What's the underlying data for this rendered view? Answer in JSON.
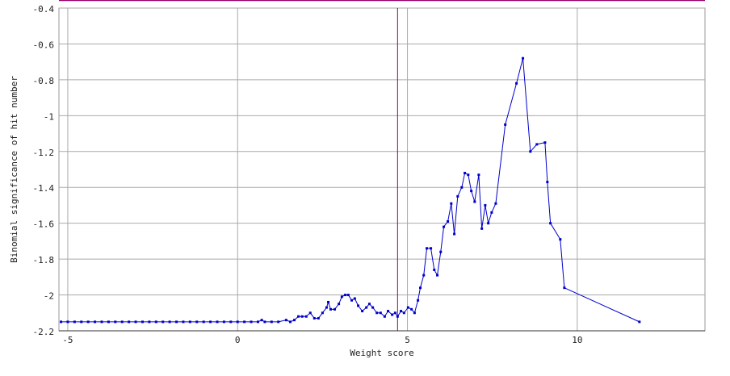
{
  "chart_data": {
    "type": "line",
    "xlabel": "Weight score",
    "ylabel": "Binomial significance of hit number",
    "color": "#0000cc",
    "marker_line_x": 4.71,
    "marker_line_color": "#990066",
    "grid": true,
    "xlim": [
      -5.26,
      13.76
    ],
    "xticks": [
      -5,
      0,
      5,
      10
    ],
    "ylim": [
      -2.2,
      -0.4
    ],
    "yticks": [
      -0.4,
      -0.6,
      -0.8,
      -1,
      -1.2,
      -1.4,
      -1.6,
      -1.8,
      -2,
      -2.2
    ],
    "x": [
      -5.2,
      -5,
      -4.8,
      -4.6,
      -4.4,
      -4.2,
      -4,
      -3.8,
      -3.6,
      -3.4,
      -3.2,
      -3,
      -2.8,
      -2.6,
      -2.4,
      -2.2,
      -2,
      -1.8,
      -1.6,
      -1.4,
      -1.2,
      -1,
      -0.8,
      -0.6,
      -0.4,
      -0.2,
      0,
      0.2,
      0.4,
      0.6,
      0.71,
      0.8,
      1.0,
      1.2,
      1.43,
      1.55,
      1.67,
      1.79,
      1.9,
      2.02,
      2.14,
      2.26,
      2.38,
      2.5,
      2.62,
      2.67,
      2.74,
      2.86,
      2.98,
      3.07,
      3.17,
      3.26,
      3.36,
      3.45,
      3.55,
      3.67,
      3.79,
      3.88,
      3.98,
      4.1,
      4.21,
      4.33,
      4.43,
      4.55,
      4.64,
      4.71,
      4.81,
      4.9,
      5.02,
      5.12,
      5.21,
      5.31,
      5.38,
      5.48,
      5.57,
      5.69,
      5.79,
      5.88,
      5.98,
      6.07,
      6.19,
      6.29,
      6.38,
      6.48,
      6.6,
      6.69,
      6.79,
      6.88,
      6.98,
      7.1,
      7.19,
      7.29,
      7.38,
      7.48,
      7.6,
      7.88,
      8.21,
      8.4,
      8.62,
      8.81,
      9.05,
      9.12,
      9.21,
      9.5,
      9.62,
      11.83
    ],
    "values": [
      -2.15,
      -2.15,
      -2.15,
      -2.15,
      -2.15,
      -2.15,
      -2.15,
      -2.15,
      -2.15,
      -2.15,
      -2.15,
      -2.15,
      -2.15,
      -2.15,
      -2.15,
      -2.15,
      -2.15,
      -2.15,
      -2.15,
      -2.15,
      -2.15,
      -2.15,
      -2.15,
      -2.15,
      -2.15,
      -2.15,
      -2.15,
      -2.15,
      -2.15,
      -2.15,
      -2.14,
      -2.15,
      -2.15,
      -2.15,
      -2.14,
      -2.15,
      -2.14,
      -2.12,
      -2.12,
      -2.12,
      -2.1,
      -2.13,
      -2.13,
      -2.1,
      -2.07,
      -2.04,
      -2.08,
      -2.08,
      -2.05,
      -2.01,
      -2,
      -2,
      -2.03,
      -2.02,
      -2.06,
      -2.09,
      -2.07,
      -2.05,
      -2.07,
      -2.1,
      -2.1,
      -2.12,
      -2.09,
      -2.11,
      -2.1,
      -2.12,
      -2.09,
      -2.1,
      -2.07,
      -2.08,
      -2.1,
      -2.03,
      -1.96,
      -1.89,
      -1.74,
      -1.74,
      -1.86,
      -1.89,
      -1.76,
      -1.62,
      -1.59,
      -1.49,
      -1.66,
      -1.45,
      -1.4,
      -1.32,
      -1.33,
      -1.42,
      -1.48,
      -1.33,
      -1.63,
      -1.5,
      -1.6,
      -1.54,
      -1.49,
      -1.05,
      -0.82,
      -0.68,
      -1.2,
      -1.16,
      -1.15,
      -1.37,
      -1.6,
      -1.69,
      -1.96,
      -2.15
    ]
  }
}
